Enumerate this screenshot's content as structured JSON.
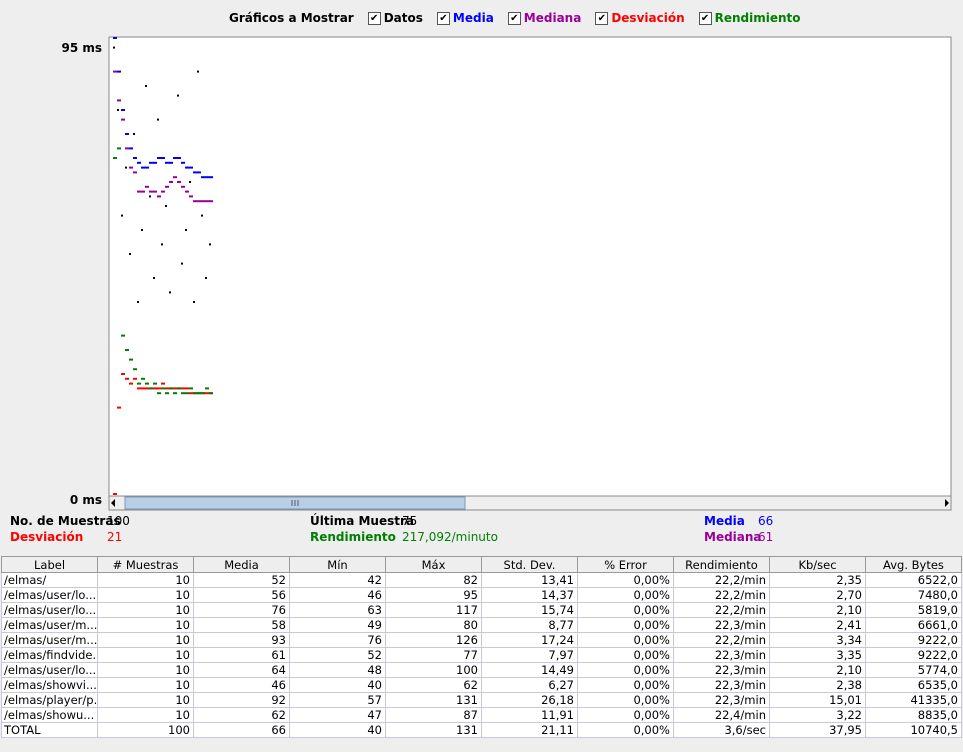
{
  "controls_label": "Gráficos a Mostrar",
  "chart_data": {
    "type": "scatter",
    "ylim": [
      0,
      95
    ],
    "yticks": [
      {
        "value": 95,
        "label": "95 ms"
      },
      {
        "value": 0,
        "label": "0 ms"
      }
    ],
    "x": [
      1,
      5,
      9,
      13,
      17,
      21,
      25,
      29,
      33,
      37,
      41,
      45,
      49,
      53,
      57,
      61,
      65,
      69,
      73,
      77,
      81,
      85,
      89,
      93,
      97
    ],
    "series": [
      {
        "name": "Datos",
        "color": "#000000",
        "values": [
          93,
          80,
          58,
          68,
          50,
          75,
          40,
          55,
          85,
          62,
          45,
          78,
          52,
          60,
          42,
          70,
          83,
          48,
          55,
          65,
          40,
          88,
          58,
          45,
          52
        ]
      },
      {
        "name": "Media",
        "color": "#0000ff",
        "values": [
          95,
          88,
          80,
          75,
          72,
          70,
          69,
          68,
          68,
          69,
          69,
          70,
          70,
          69,
          69,
          70,
          70,
          69,
          68,
          68,
          67,
          67,
          66,
          66,
          66
        ]
      },
      {
        "name": "Mediana",
        "color": "#990099",
        "values": [
          88,
          82,
          78,
          72,
          68,
          67,
          63,
          63,
          64,
          63,
          63,
          62,
          63,
          64,
          65,
          66,
          65,
          64,
          63,
          62,
          61,
          61,
          61,
          61,
          61
        ]
      },
      {
        "name": "Desviación",
        "color": "#ff0000",
        "values": [
          0,
          18,
          25,
          24,
          23,
          24,
          22,
          22,
          22,
          22,
          22,
          22,
          23,
          22,
          22,
          22,
          22,
          22,
          22,
          21,
          21,
          21,
          21,
          21,
          21
        ]
      },
      {
        "name": "Rendimiento",
        "color": "#008000",
        "values": [
          70,
          72,
          33,
          30,
          28,
          26,
          23,
          24,
          23,
          22,
          23,
          21,
          22,
          21,
          22,
          21,
          22,
          21,
          21,
          22,
          21,
          21,
          21,
          22,
          21
        ]
      }
    ]
  },
  "stats": [
    {
      "label": "No. de Muestras",
      "value": "100",
      "color": "#000000"
    },
    {
      "label": "Última Muestra",
      "value": "75",
      "color": "#000000"
    },
    {
      "label": "Media",
      "value": "66",
      "color": "#0000ff"
    },
    {
      "label": "Desviación",
      "value": "21",
      "color": "#ff0000"
    },
    {
      "label": "Rendimiento",
      "value": "217,092/minuto",
      "color": "#008000"
    },
    {
      "label": "Mediana",
      "value": "61",
      "color": "#990099"
    }
  ],
  "table": {
    "headers": [
      "Label",
      "# Muestras",
      "Media",
      "Mín",
      "Máx",
      "Std. Dev.",
      "% Error",
      "Rendimiento",
      "Kb/sec",
      "Avg. Bytes"
    ],
    "rows": [
      [
        "/elmas/",
        "10",
        "52",
        "42",
        "82",
        "13,41",
        "0,00%",
        "22,2/min",
        "2,35",
        "6522,0"
      ],
      [
        "/elmas/user/lo...",
        "10",
        "56",
        "46",
        "95",
        "14,37",
        "0,00%",
        "22,2/min",
        "2,70",
        "7480,0"
      ],
      [
        "/elmas/user/lo...",
        "10",
        "76",
        "63",
        "117",
        "15,74",
        "0,00%",
        "22,2/min",
        "2,10",
        "5819,0"
      ],
      [
        "/elmas/user/m...",
        "10",
        "58",
        "49",
        "80",
        "8,77",
        "0,00%",
        "22,3/min",
        "2,41",
        "6661,0"
      ],
      [
        "/elmas/user/m...",
        "10",
        "93",
        "76",
        "126",
        "17,24",
        "0,00%",
        "22,2/min",
        "3,34",
        "9222,0"
      ],
      [
        "/elmas/findvide...",
        "10",
        "61",
        "52",
        "77",
        "7,97",
        "0,00%",
        "22,3/min",
        "3,35",
        "9222,0"
      ],
      [
        "/elmas/user/lo...",
        "10",
        "64",
        "48",
        "100",
        "14,49",
        "0,00%",
        "22,3/min",
        "2,10",
        "5774,0"
      ],
      [
        "/elmas/showvi...",
        "10",
        "46",
        "40",
        "62",
        "6,27",
        "0,00%",
        "22,3/min",
        "2,38",
        "6535,0"
      ],
      [
        "/elmas/player/p...",
        "10",
        "92",
        "57",
        "131",
        "26,18",
        "0,00%",
        "22,3/min",
        "15,01",
        "41335,0"
      ],
      [
        "/elmas/showu...",
        "10",
        "62",
        "47",
        "87",
        "11,91",
        "0,00%",
        "22,4/min",
        "3,22",
        "8835,0"
      ],
      [
        "TOTAL",
        "100",
        "66",
        "40",
        "131",
        "21,11",
        "0,00%",
        "3,6/sec",
        "37,95",
        "10740,5"
      ]
    ]
  }
}
